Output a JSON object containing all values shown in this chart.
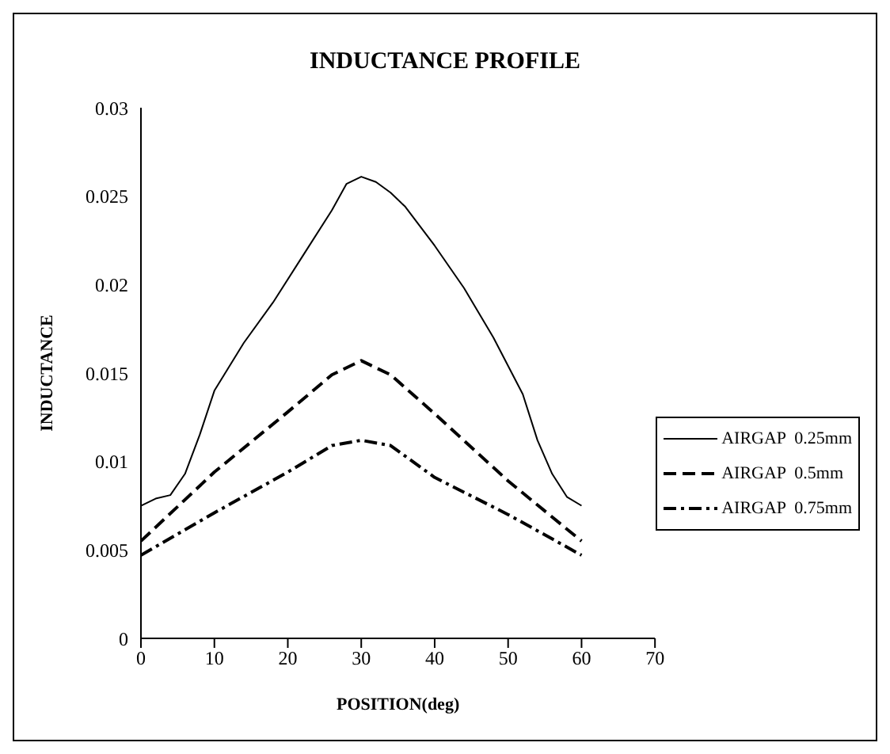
{
  "chart_data": {
    "type": "line",
    "title": "INDUCTANCE PROFILE",
    "xlabel": "POSITION(deg)",
    "ylabel": "INDUCTANCE",
    "xlim": [
      0,
      70
    ],
    "xticks": [
      0,
      10,
      20,
      30,
      40,
      50,
      60,
      70
    ],
    "ylim": [
      0,
      0.03
    ],
    "yticks": [
      0,
      0.005,
      0.01,
      0.015,
      0.02,
      0.025,
      0.03
    ],
    "legend": "right",
    "marker": "none",
    "series": [
      {
        "name": "AIRGAP  0.25mm",
        "color": "#000000",
        "line_style": "solid",
        "x": [
          0,
          2,
          4,
          6,
          8,
          10,
          14,
          18,
          22,
          26,
          28,
          30,
          32,
          34,
          36,
          40,
          44,
          48,
          50,
          52,
          54,
          56,
          58,
          60
        ],
        "values": [
          0.0075,
          0.0079,
          0.0081,
          0.0093,
          0.0115,
          0.014,
          0.0167,
          0.019,
          0.0216,
          0.0242,
          0.0257,
          0.0261,
          0.0258,
          0.0252,
          0.0244,
          0.0222,
          0.0198,
          0.017,
          0.0154,
          0.0138,
          0.0112,
          0.0093,
          0.008,
          0.0075
        ]
      },
      {
        "name": "AIRGAP  0.5mm",
        "color": "#000000",
        "line_style": "dashed",
        "x": [
          0,
          10,
          20,
          26,
          30,
          34,
          40,
          50,
          60
        ],
        "values": [
          0.0055,
          0.0094,
          0.0128,
          0.0149,
          0.0157,
          0.0149,
          0.0127,
          0.0089,
          0.0055
        ]
      },
      {
        "name": "AIRGAP  0.75mm",
        "color": "#000000",
        "line_style": "dashdot",
        "x": [
          0,
          10,
          20,
          26,
          30,
          34,
          40,
          50,
          60
        ],
        "values": [
          0.0047,
          0.0071,
          0.0094,
          0.0109,
          0.0112,
          0.0109,
          0.0091,
          0.007,
          0.0047
        ]
      }
    ]
  }
}
